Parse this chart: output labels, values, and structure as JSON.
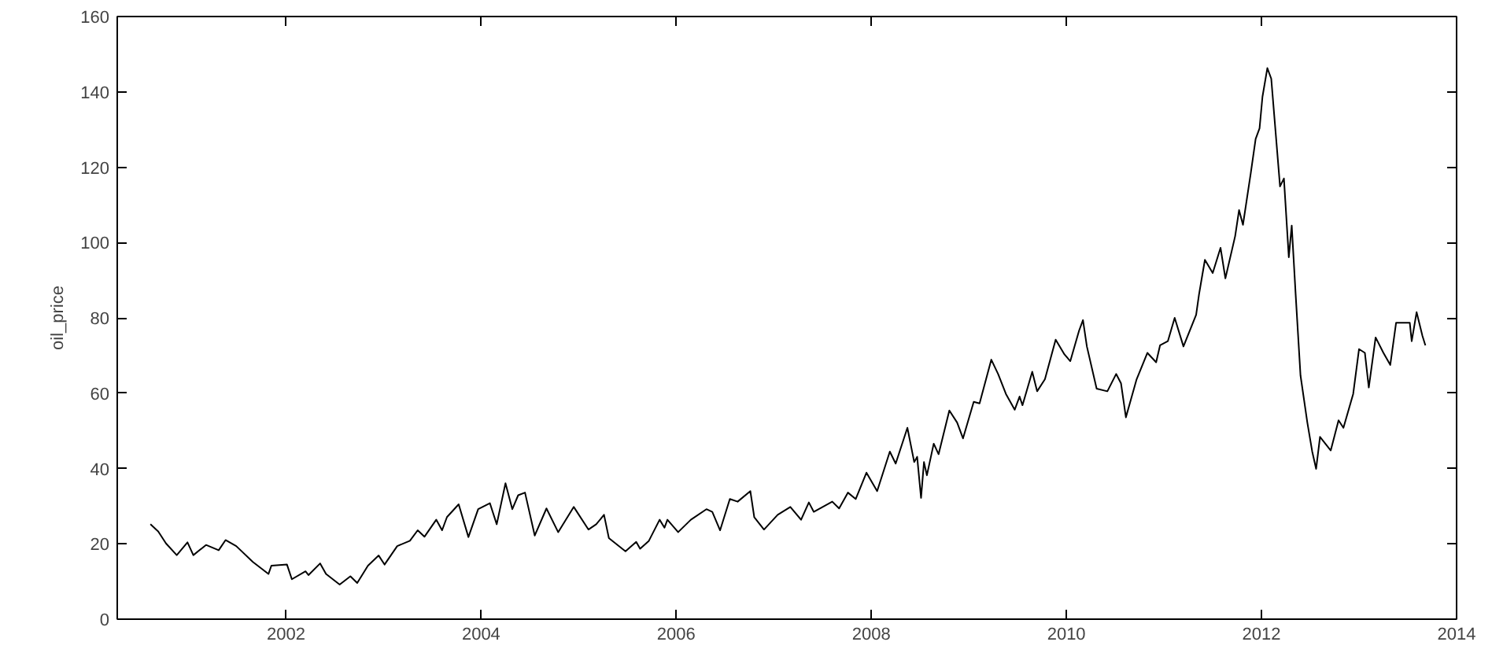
{
  "chart_data": {
    "type": "line",
    "ylabel": "oil_price",
    "xlim": [
      2000.27,
      2014
    ],
    "ylim": [
      0,
      160
    ],
    "xticks": [
      2002,
      2004,
      2006,
      2008,
      2010,
      2012,
      2014
    ],
    "yticks": [
      0,
      20,
      40,
      60,
      80,
      100,
      120,
      140,
      160
    ],
    "grid": false,
    "series": [
      {
        "color": "#000000",
        "x": [
          2000.61,
          2000.69,
          2000.77,
          2000.88,
          2000.99,
          2001.05,
          2001.18,
          2001.31,
          2001.38,
          2001.49,
          2001.66,
          2001.82,
          2001.85,
          2002.01,
          2002.06,
          2002.2,
          2002.23,
          2002.35,
          2002.41,
          2002.55,
          2002.66,
          2002.73,
          2002.84,
          2002.95,
          2003.01,
          2003.14,
          2003.27,
          2003.35,
          2003.42,
          2003.54,
          2003.6,
          2003.65,
          2003.77,
          2003.87,
          2003.97,
          2004.09,
          2004.16,
          2004.25,
          2004.32,
          2004.38,
          2004.45,
          2004.55,
          2004.67,
          2004.79,
          2004.95,
          2005.1,
          2005.18,
          2005.26,
          2005.31,
          2005.48,
          2005.59,
          2005.63,
          2005.72,
          2005.83,
          2005.88,
          2005.91,
          2006.02,
          2006.15,
          2006.31,
          2006.37,
          2006.45,
          2006.55,
          2006.63,
          2006.76,
          2006.8,
          2006.9,
          2007.04,
          2007.17,
          2007.28,
          2007.36,
          2007.41,
          2007.6,
          2007.67,
          2007.76,
          2007.84,
          2007.95,
          2008.06,
          2008.19,
          2008.25,
          2008.37,
          2008.44,
          2008.47,
          2008.51,
          2008.54,
          2008.57,
          2008.64,
          2008.69,
          2008.8,
          2008.88,
          2008.94,
          2009.05,
          2009.11,
          2009.23,
          2009.3,
          2009.38,
          2009.47,
          2009.52,
          2009.55,
          2009.65,
          2009.7,
          2009.78,
          2009.89,
          2009.98,
          2010.04,
          2010.13,
          2010.17,
          2010.21,
          2010.31,
          2010.42,
          2010.51,
          2010.56,
          2010.61,
          2010.72,
          2010.83,
          2010.92,
          2010.96,
          2011.04,
          2011.11,
          2011.2,
          2011.33,
          2011.36,
          2011.42,
          2011.5,
          2011.58,
          2011.63,
          2011.73,
          2011.77,
          2011.81,
          2011.89,
          2011.94,
          2011.98,
          2012.01,
          2012.06,
          2012.1,
          2012.19,
          2012.23,
          2012.28,
          2012.31,
          2012.35,
          2012.4,
          2012.47,
          2012.52,
          2012.56,
          2012.6,
          2012.71,
          2012.79,
          2012.84,
          2012.94,
          2013.0,
          2013.06,
          2013.1,
          2013.17,
          2013.25,
          2013.32,
          2013.38,
          2013.52,
          2013.54,
          2013.59,
          2013.65,
          2013.68
        ],
        "values": [
          25.2,
          23.3,
          20.1,
          17.0,
          20.4,
          17.0,
          19.7,
          18.3,
          21.0,
          19.4,
          15.2,
          12.0,
          14.2,
          14.5,
          10.6,
          12.7,
          11.7,
          14.8,
          12.0,
          9.2,
          11.4,
          9.6,
          14.2,
          16.9,
          14.5,
          19.4,
          20.8,
          23.6,
          21.9,
          26.4,
          23.6,
          27.1,
          30.5,
          21.8,
          29.2,
          30.8,
          25.2,
          36.1,
          29.2,
          32.9,
          33.6,
          22.2,
          29.4,
          23.1,
          29.8,
          23.8,
          25.2,
          27.7,
          21.5,
          18.0,
          20.5,
          18.7,
          20.8,
          26.4,
          24.3,
          26.4,
          23.1,
          26.4,
          29.2,
          28.5,
          23.6,
          31.9,
          31.2,
          34.0,
          27.1,
          23.8,
          27.7,
          29.8,
          26.4,
          31.0,
          28.5,
          31.2,
          29.4,
          33.6,
          31.9,
          38.9,
          34.0,
          44.5,
          41.3,
          50.8,
          41.7,
          43.1,
          32.2,
          41.7,
          38.2,
          46.6,
          43.8,
          55.4,
          52.2,
          48.0,
          57.7,
          57.3,
          68.9,
          65.1,
          59.8,
          55.6,
          59.1,
          56.8,
          65.7,
          60.5,
          63.7,
          74.2,
          70.3,
          68.5,
          76.6,
          79.4,
          72.4,
          61.2,
          60.5,
          65.1,
          62.6,
          53.6,
          63.7,
          70.7,
          68.2,
          72.7,
          73.8,
          80.0,
          72.4,
          80.8,
          86.3,
          95.4,
          91.9,
          98.6,
          90.5,
          101.7,
          108.6,
          104.7,
          118.4,
          127.5,
          130.3,
          138.7,
          146.3,
          143.5,
          114.9,
          117.0,
          96.1,
          104.5,
          86.3,
          64.7,
          52.2,
          44.5,
          39.9,
          48.4,
          44.8,
          52.8,
          50.8,
          59.8,
          71.7,
          70.7,
          61.5,
          74.8,
          70.7,
          67.5,
          78.7,
          78.7,
          73.8,
          81.5,
          75.2,
          72.7
        ]
      }
    ]
  }
}
